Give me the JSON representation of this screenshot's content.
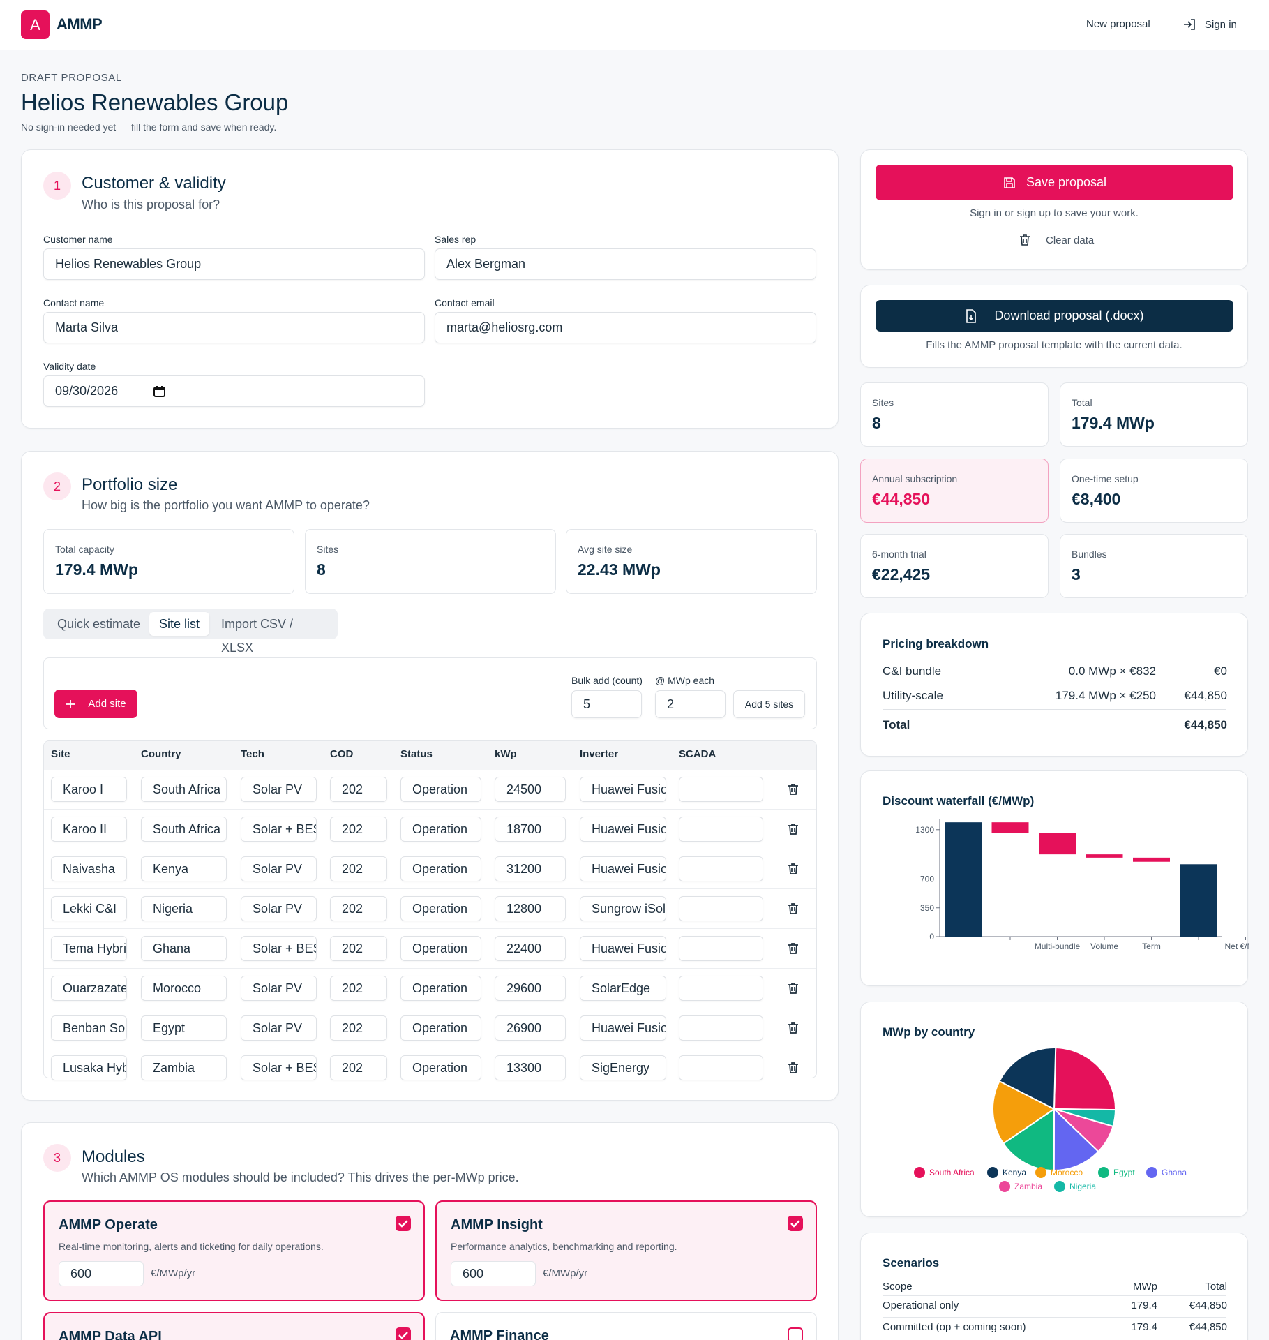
{
  "header": {
    "logo_letter": "A",
    "brand": "AMMP",
    "new_proposal": "New proposal",
    "sign_in": "Sign in"
  },
  "page": {
    "eyebrow": "DRAFT PROPOSAL",
    "title": "Helios Renewables Group",
    "subtitle": "No sign-in needed yet — fill the form and save when ready."
  },
  "customer": {
    "step": "1",
    "title": "Customer & validity",
    "subtitle": "Who is this proposal for?",
    "customer_name_label": "Customer name",
    "customer_name": "Helios Renewables Group",
    "sales_rep_label": "Sales rep",
    "sales_rep": "Alex Bergman",
    "contact_name_label": "Contact name",
    "contact_name": "Marta Silva",
    "contact_email_label": "Contact email",
    "contact_email": "marta@heliosrg.com",
    "validity_label": "Validity date",
    "validity": "09/30/2026"
  },
  "portfolio": {
    "step": "2",
    "title": "Portfolio size",
    "subtitle": "How big is the portfolio you want AMMP to operate?",
    "stats": [
      {
        "label": "Total capacity",
        "value": "179.4 MWp"
      },
      {
        "label": "Sites",
        "value": "8"
      },
      {
        "label": "Avg site size",
        "value": "22.43 MWp"
      }
    ],
    "tabs": [
      "Quick estimate",
      "Site list",
      "Import CSV / XLSX"
    ],
    "add_site": "Add site",
    "bulk_label": "Bulk add (count)",
    "bulk_value": "5",
    "each_label": "@ MWp each",
    "each_value": "2",
    "add_sites_btn": "Add 5 sites",
    "columns": [
      "Site",
      "Country",
      "Tech",
      "COD",
      "Status",
      "kWp",
      "Inverter",
      "SCADA"
    ],
    "rows": [
      [
        "Karoo I",
        "South Africa",
        "Solar PV",
        "202",
        "Operation",
        "24500",
        "Huawei Fusion",
        ""
      ],
      [
        "Karoo II",
        "South Africa",
        "Solar + BESS",
        "202",
        "Operation",
        "18700",
        "Huawei Fusion",
        ""
      ],
      [
        "Naivasha",
        "Kenya",
        "Solar PV",
        "202",
        "Operation",
        "31200",
        "Huawei Fusion",
        ""
      ],
      [
        "Lekki C&I",
        "Nigeria",
        "Solar PV",
        "202",
        "Operation",
        "12800",
        "Sungrow iSolar",
        ""
      ],
      [
        "Tema Hybrid",
        "Ghana",
        "Solar + BESS",
        "202",
        "Operation",
        "22400",
        "Huawei Fusion",
        ""
      ],
      [
        "Ouarzazate",
        "Morocco",
        "Solar PV",
        "202",
        "Operation",
        "29600",
        "SolarEdge",
        ""
      ],
      [
        "Benban Solar",
        "Egypt",
        "Solar PV",
        "202",
        "Operation",
        "26900",
        "Huawei Fusion",
        ""
      ],
      [
        "Lusaka Hybrid",
        "Zambia",
        "Solar + BESS",
        "202",
        "Operation",
        "13300",
        "SigEnergy",
        ""
      ]
    ]
  },
  "modules": {
    "step": "3",
    "title": "Modules",
    "subtitle": "Which AMMP OS modules should be included? This drives the per-MWp price.",
    "items": [
      {
        "name": "AMMP Operate",
        "desc": "Real-time monitoring, alerts and ticketing for daily operations.",
        "price": "600",
        "unit": "€/MWp/yr",
        "checked": true
      },
      {
        "name": "AMMP Insight",
        "desc": "Performance analytics, benchmarking and reporting.",
        "price": "600",
        "unit": "€/MWp/yr",
        "checked": true
      },
      {
        "name": "AMMP Data API",
        "checked": true
      },
      {
        "name": "AMMP Finance",
        "checked": false
      }
    ]
  },
  "sidebar": {
    "save": "Save proposal",
    "save_hint": "Sign in or sign up to save your work.",
    "clear": "Clear data",
    "download": "Download proposal (.docx)",
    "download_hint": "Fills the AMMP proposal template with the current data.",
    "kpis": [
      {
        "label": "Sites",
        "value": "8"
      },
      {
        "label": "Total",
        "value": "179.4 MWp"
      },
      {
        "label": "Annual subscription",
        "value": "€44,850"
      },
      {
        "label": "One-time setup",
        "value": "€8,400"
      },
      {
        "label": "6-month trial",
        "value": "€22,425"
      },
      {
        "label": "Bundles",
        "value": "3"
      }
    ],
    "pricing": {
      "title": "Pricing breakdown",
      "rows": [
        {
          "name": "C&I bundle",
          "calc": "0.0 MWp × €832",
          "amount": "€0"
        },
        {
          "name": "Utility-scale",
          "calc": "179.4 MWp × €250",
          "amount": "€44,850"
        }
      ],
      "total_label": "Total",
      "total": "€44,850"
    },
    "scenarios": {
      "title": "Scenarios",
      "headers": [
        "Scope",
        "MWp",
        "Total"
      ],
      "rows": [
        [
          "Operational only",
          "179.4",
          "€44,850"
        ],
        [
          "Committed (op + coming soon)",
          "179.4",
          "€44,850"
        ]
      ]
    }
  },
  "chart_data": [
    {
      "type": "bar",
      "title": "Discount waterfall (€/MWp)",
      "categories": [
        "",
        "",
        "Multi-bundle",
        "Volume",
        "Term",
        "",
        "Net €/MWp"
      ],
      "bars": [
        {
          "start": 0,
          "end": 1390,
          "kind": "total"
        },
        {
          "start": 1390,
          "end": 1260,
          "kind": "decrease"
        },
        {
          "start": 1260,
          "end": 1000,
          "kind": "decrease"
        },
        {
          "start": 1000,
          "end": 960,
          "kind": "decrease"
        },
        {
          "start": 960,
          "end": 910,
          "kind": "decrease"
        },
        {
          "start": 0,
          "end": 880,
          "kind": "total"
        }
      ],
      "yticks": [
        0,
        350,
        700,
        1300
      ],
      "ylim": [
        0,
        1400
      ],
      "colors": {
        "total": "#0c3558",
        "decrease": "#e5115a"
      }
    },
    {
      "type": "pie",
      "title": "MWp by country",
      "slices": [
        {
          "label": "South Africa",
          "value": 43.2,
          "color": "#e5115a"
        },
        {
          "label": "Ghana",
          "value": 7.6,
          "color": "#14b8a6"
        },
        {
          "label": "Zambia",
          "value": 13.3,
          "color": "#ec4899"
        },
        {
          "label": "Ghana",
          "value": 22.4,
          "color": "#6366f1"
        },
        {
          "label": "Egypt",
          "value": 26.9,
          "color": "#10b981"
        },
        {
          "label": "Morocco",
          "value": 29.6,
          "color": "#f59e0b"
        },
        {
          "label": "Kenya",
          "value": 31.2,
          "color": "#0c3558"
        }
      ],
      "legend": [
        {
          "label": "South Africa",
          "color": "#e5115a"
        },
        {
          "label": "Kenya",
          "color": "#0c3558"
        },
        {
          "label": "Morocco",
          "color": "#f59e0b"
        },
        {
          "label": "Egypt",
          "color": "#10b981"
        },
        {
          "label": "Ghana",
          "color": "#6366f1"
        },
        {
          "label": "Zambia",
          "color": "#ec4899"
        },
        {
          "label": "Nigeria",
          "color": "#14b8a6"
        }
      ]
    }
  ]
}
